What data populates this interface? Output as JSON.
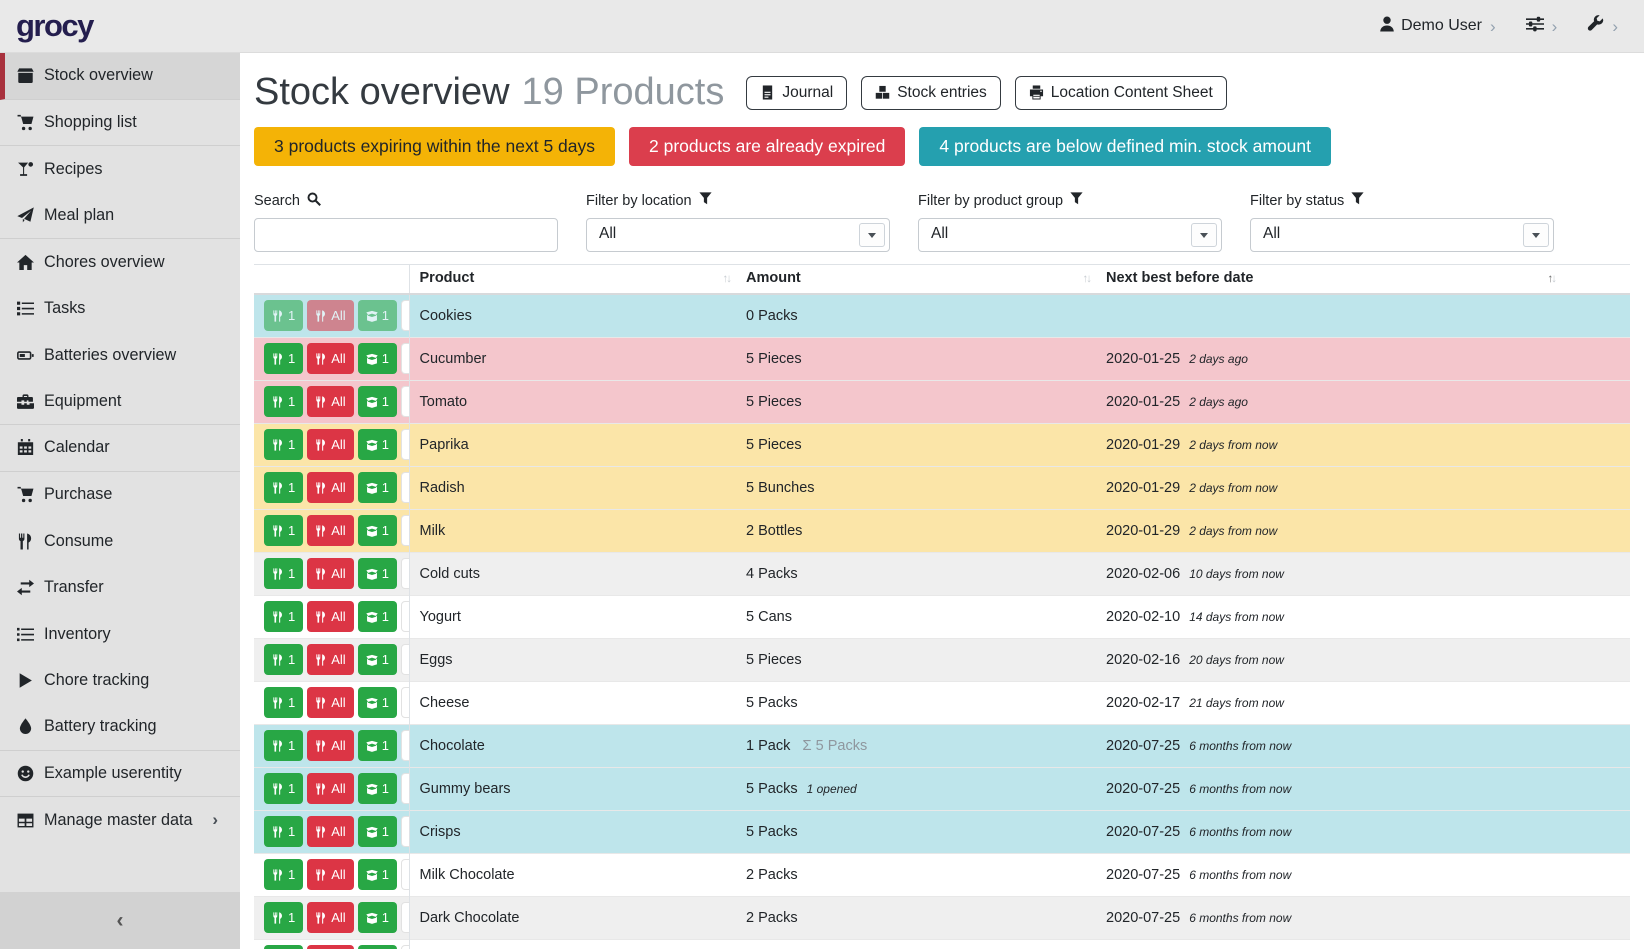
{
  "navbar": {
    "logo": "grocy",
    "user_label": "Demo User",
    "chevron": "›"
  },
  "sidebar": {
    "items": [
      {
        "label": "Stock overview",
        "icon": "box-icon",
        "active": true,
        "divider_after": true
      },
      {
        "label": "Shopping list",
        "icon": "cart-icon",
        "divider_after": true
      },
      {
        "label": "Recipes",
        "icon": "cocktail-icon"
      },
      {
        "label": "Meal plan",
        "icon": "paper-plane-icon",
        "divider_after": true
      },
      {
        "label": "Chores overview",
        "icon": "home-icon"
      },
      {
        "label": "Tasks",
        "icon": "tasks-icon"
      },
      {
        "label": "Batteries overview",
        "icon": "battery-icon"
      },
      {
        "label": "Equipment",
        "icon": "toolbox-icon",
        "divider_after": true
      },
      {
        "label": "Calendar",
        "icon": "calendar-icon",
        "divider_after": true
      },
      {
        "label": "Purchase",
        "icon": "cart-icon"
      },
      {
        "label": "Consume",
        "icon": "utensils-icon"
      },
      {
        "label": "Transfer",
        "icon": "exchange-icon"
      },
      {
        "label": "Inventory",
        "icon": "list-icon"
      },
      {
        "label": "Chore tracking",
        "icon": "play-icon"
      },
      {
        "label": "Battery tracking",
        "icon": "drop-icon",
        "divider_after": true
      },
      {
        "label": "Example userentity",
        "icon": "smile-icon",
        "divider_after": true
      },
      {
        "label": "Manage master data",
        "icon": "table-icon",
        "chevron": "›"
      }
    ],
    "collapse_chevron": "‹"
  },
  "header": {
    "title": "Stock overview",
    "subtitle": "19 Products",
    "buttons": [
      {
        "label": "Journal",
        "icon": "journal-file-icon"
      },
      {
        "label": "Stock entries",
        "icon": "cubes-icon"
      },
      {
        "label": "Location Content Sheet",
        "icon": "printer-icon"
      }
    ]
  },
  "alerts": [
    {
      "text": "3 products expiring within the next 5 days",
      "type": "warning",
      "color": "#f4b306"
    },
    {
      "text": "2 products are already expired",
      "type": "danger",
      "color": "#db3e4d"
    },
    {
      "text": "4 products are below defined min. stock amount",
      "type": "info",
      "color": "#25a0af"
    }
  ],
  "filters": {
    "search_label": "Search",
    "location_label": "Filter by location",
    "product_group_label": "Filter by product group",
    "status_label": "Filter by status",
    "search_value": "",
    "location_value": "All",
    "product_group_value": "All",
    "status_value": "All"
  },
  "table": {
    "columns": [
      "Product",
      "Amount",
      "Next best before date"
    ],
    "row_buttons": {
      "consume_one": "1",
      "consume_all": "All",
      "open_one": "1"
    },
    "sum_symbol": "Σ",
    "rows": [
      {
        "product": "Cookies",
        "amount": "0 Packs",
        "date": "",
        "relative": "",
        "status": "belowmin",
        "buttons_muted": true
      },
      {
        "product": "Cucumber",
        "amount": "5 Pieces",
        "date": "2020-01-25",
        "relative": "2 days ago",
        "status": "expired"
      },
      {
        "product": "Tomato",
        "amount": "5 Pieces",
        "date": "2020-01-25",
        "relative": "2 days ago",
        "status": "expired"
      },
      {
        "product": "Paprika",
        "amount": "5 Pieces",
        "date": "2020-01-29",
        "relative": "2 days from now",
        "status": "expiring"
      },
      {
        "product": "Radish",
        "amount": "5 Bunches",
        "date": "2020-01-29",
        "relative": "2 days from now",
        "status": "expiring"
      },
      {
        "product": "Milk",
        "amount": "2 Bottles",
        "date": "2020-01-29",
        "relative": "2 days from now",
        "status": "expiring"
      },
      {
        "product": "Cold cuts",
        "amount": "4 Packs",
        "date": "2020-02-06",
        "relative": "10 days from now",
        "status": "none"
      },
      {
        "product": "Yogurt",
        "amount": "5 Cans",
        "date": "2020-02-10",
        "relative": "14 days from now",
        "status": "none"
      },
      {
        "product": "Eggs",
        "amount": "5 Pieces",
        "date": "2020-02-16",
        "relative": "20 days from now",
        "status": "none"
      },
      {
        "product": "Cheese",
        "amount": "5 Packs",
        "date": "2020-02-17",
        "relative": "21 days from now",
        "status": "none"
      },
      {
        "product": "Chocolate",
        "amount": "1 Pack",
        "amount_total": "5 Packs",
        "date": "2020-07-25",
        "relative": "6 months from now",
        "status": "belowmin"
      },
      {
        "product": "Gummy bears",
        "amount": "5 Packs",
        "amount_note": "1 opened",
        "date": "2020-07-25",
        "relative": "6 months from now",
        "status": "belowmin"
      },
      {
        "product": "Crisps",
        "amount": "5 Packs",
        "date": "2020-07-25",
        "relative": "6 months from now",
        "status": "belowmin"
      },
      {
        "product": "Milk Chocolate",
        "amount": "2 Packs",
        "date": "2020-07-25",
        "relative": "6 months from now",
        "status": "none"
      },
      {
        "product": "Dark Chocolate",
        "amount": "2 Packs",
        "date": "2020-07-25",
        "relative": "6 months from now",
        "status": "none"
      },
      {
        "product": "",
        "amount": "",
        "date": "",
        "relative": "",
        "status": "partial"
      }
    ]
  },
  "colors": {
    "row_below_min": "#bee5eb",
    "row_expired": "#f4c6cc",
    "row_expiring": "#fbe5a8",
    "row_stripe": "#efefef",
    "sidebar_accent": "#a8313d",
    "button_green": "#28a745",
    "button_red": "#dc3545",
    "alert_warning": "#f4b306",
    "alert_danger": "#db3e4d",
    "alert_info": "#25a0af"
  }
}
